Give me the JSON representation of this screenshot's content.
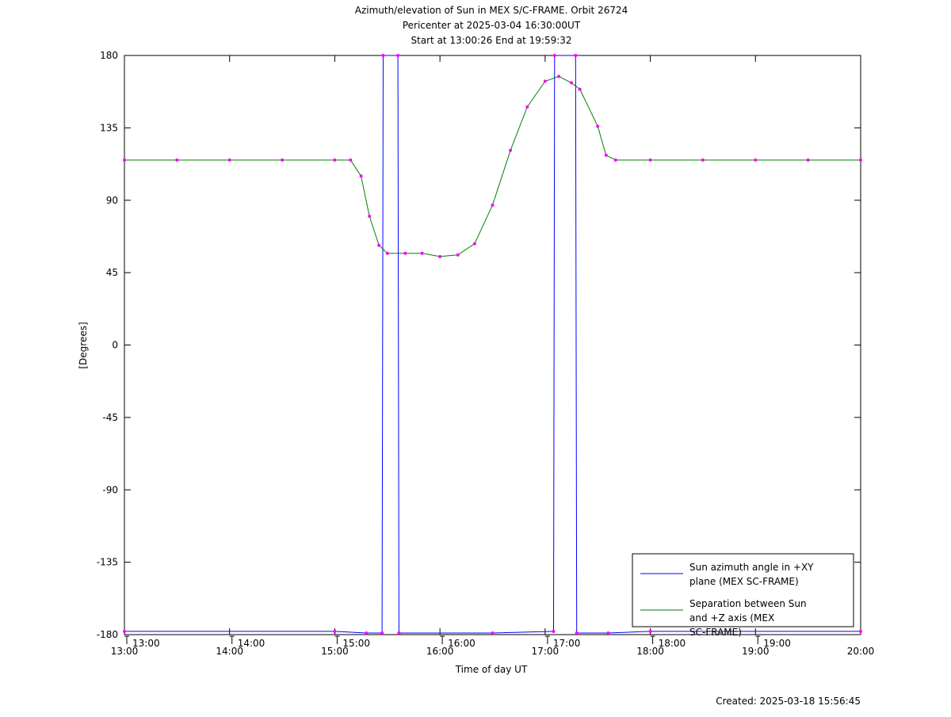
{
  "chart_data": {
    "type": "line",
    "title": "Azimuth/elevation of Sun in MEX S/C-FRAME.  Orbit 26724",
    "subtitle": [
      "Pericenter at 2025-03-04 16:30:00UT",
      "Start at 13:00:26 End at 19:59:32"
    ],
    "xlabel": "Time of day UT",
    "ylabel": "[Degrees]",
    "footer": "Created: 2025-03-18 15:56:45",
    "xlim": [
      13,
      20
    ],
    "xticks": [
      {
        "value": 13,
        "label": "13:00"
      },
      {
        "value": 14,
        "label": "14:00"
      },
      {
        "value": 15,
        "label": "15:00"
      },
      {
        "value": 16,
        "label": "16:00"
      },
      {
        "value": 17,
        "label": "17:00"
      },
      {
        "value": 18,
        "label": "18:00"
      },
      {
        "value": 19,
        "label": "19:00"
      },
      {
        "value": 20,
        "label": "20:00"
      }
    ],
    "time_marks": [
      {
        "value": 13,
        "label": "13:00"
      },
      {
        "value": 14,
        "label": "14:00"
      },
      {
        "value": 15,
        "label": "15:00"
      },
      {
        "value": 16,
        "label": "16:00"
      },
      {
        "value": 17,
        "label": "17:00"
      },
      {
        "value": 18,
        "label": "18:00"
      },
      {
        "value": 19,
        "label": "19:00"
      }
    ],
    "ylim": [
      -180,
      180
    ],
    "yticks": [
      -180,
      -135,
      -90,
      -45,
      0,
      45,
      90,
      135,
      180
    ],
    "grid": false,
    "legend": "lower right",
    "marker_color": "#ff00ff",
    "series": [
      {
        "name": "Sun azimuth angle in +XY plane (MEX SC-FRAME)",
        "color": "#0000ff",
        "x": [
          13.0,
          15.0,
          15.3,
          15.45,
          15.46,
          15.6,
          15.61,
          16.5,
          17.08,
          17.09,
          17.29,
          17.3,
          17.6,
          18.0,
          20.0
        ],
        "values": [
          -178,
          -178,
          -179,
          -179,
          180,
          180,
          -179,
          -179,
          -178,
          180,
          180,
          -179,
          -179,
          -178,
          -178
        ]
      },
      {
        "name": "Separation between Sun and +Z axis (MEX SC-FRAME)",
        "color": "#008000",
        "x": [
          13.0,
          13.5,
          14.0,
          14.5,
          15.0,
          15.15,
          15.25,
          15.33,
          15.42,
          15.5,
          15.67,
          15.83,
          16.0,
          16.17,
          16.33,
          16.5,
          16.67,
          16.83,
          17.0,
          17.13,
          17.25,
          17.33,
          17.5,
          17.58,
          17.67,
          18.0,
          18.5,
          19.0,
          19.5,
          20.0
        ],
        "values": [
          115,
          115,
          115,
          115,
          115,
          115,
          105,
          80,
          62,
          57,
          57,
          57,
          55,
          56,
          63,
          87,
          121,
          148,
          164,
          167,
          163,
          159,
          136,
          118,
          115,
          115,
          115,
          115,
          115,
          115
        ]
      }
    ]
  }
}
